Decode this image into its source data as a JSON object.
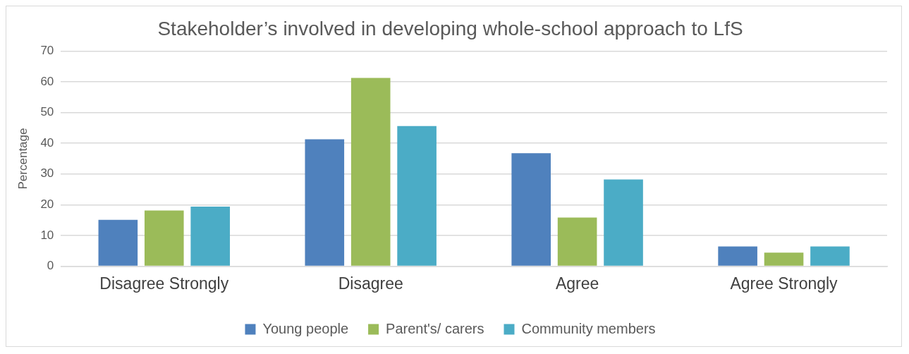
{
  "chart_data": {
    "type": "bar",
    "title": "Stakeholder’s involved in developing whole-school approach to LfS",
    "ylabel": "Percentage",
    "categories": [
      "Disagree Strongly",
      "Disagree",
      "Agree",
      "Agree Strongly"
    ],
    "series": [
      {
        "name": "Young people",
        "color": "#4f81bd",
        "values": [
          15.1,
          41.3,
          36.8,
          6.4
        ]
      },
      {
        "name": "Parent's/ carers",
        "color": "#9bbb59",
        "values": [
          18.1,
          61.3,
          15.8,
          4.4
        ]
      },
      {
        "name": "Community members",
        "color": "#4bacc6",
        "values": [
          19.4,
          45.6,
          28.2,
          6.4
        ]
      }
    ],
    "ylim": [
      0,
      70
    ],
    "yticks": [
      0,
      10,
      20,
      30,
      40,
      50,
      60,
      70
    ],
    "grid": "y",
    "legend": "bottom"
  }
}
